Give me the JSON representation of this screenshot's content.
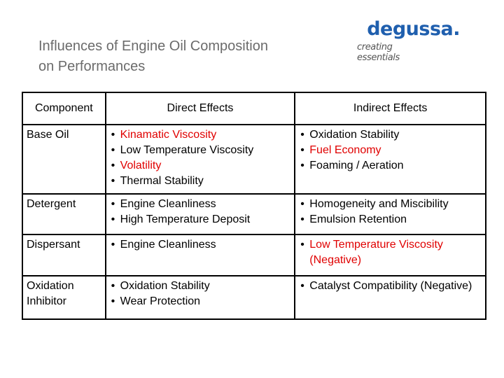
{
  "title_line1": "Influences of Engine Oil Composition",
  "title_line2": "on Performances",
  "logo": {
    "name": "degussa.",
    "tagline": "creating essentials",
    "color": "#1f5fae"
  },
  "headers": [
    "Component",
    "Direct Effects",
    "Indirect Effects"
  ],
  "rows": [
    {
      "component": "Base Oil",
      "direct": [
        {
          "text": "Kinamatic Viscosity",
          "color": "red"
        },
        {
          "text": "Low Temperature Viscosity",
          "color": "black"
        },
        {
          "text": "Volatility",
          "color": "red"
        },
        {
          "text": "Thermal Stability",
          "color": "black"
        }
      ],
      "indirect": [
        {
          "text": "Oxidation Stability",
          "color": "black"
        },
        {
          "text": "Fuel Economy",
          "color": "red"
        },
        {
          "text": "Foaming / Aeration",
          "color": "black"
        }
      ]
    },
    {
      "component": "Detergent",
      "direct": [
        {
          "text": "Engine Cleanliness",
          "color": "black"
        },
        {
          "text": "High Temperature Deposit",
          "color": "black"
        }
      ],
      "indirect": [
        {
          "text": "Homogeneity and Miscibility",
          "color": "black"
        },
        {
          "text": "Emulsion Retention",
          "color": "black"
        }
      ]
    },
    {
      "component": "Dispersant",
      "direct": [
        {
          "text": "Engine Cleanliness",
          "color": "black"
        }
      ],
      "indirect": [
        {
          "text": "Low Temperature Viscosity (Negative)",
          "color": "red"
        }
      ]
    },
    {
      "component_line1": "Oxidation",
      "component_line2": "Inhibitor",
      "direct": [
        {
          "text": "Oxidation Stability",
          "color": "black"
        },
        {
          "text": "Wear Protection",
          "color": "black"
        }
      ],
      "indirect": [
        {
          "text": "Catalyst Compatibility (Negative)",
          "color": "black"
        }
      ]
    }
  ]
}
